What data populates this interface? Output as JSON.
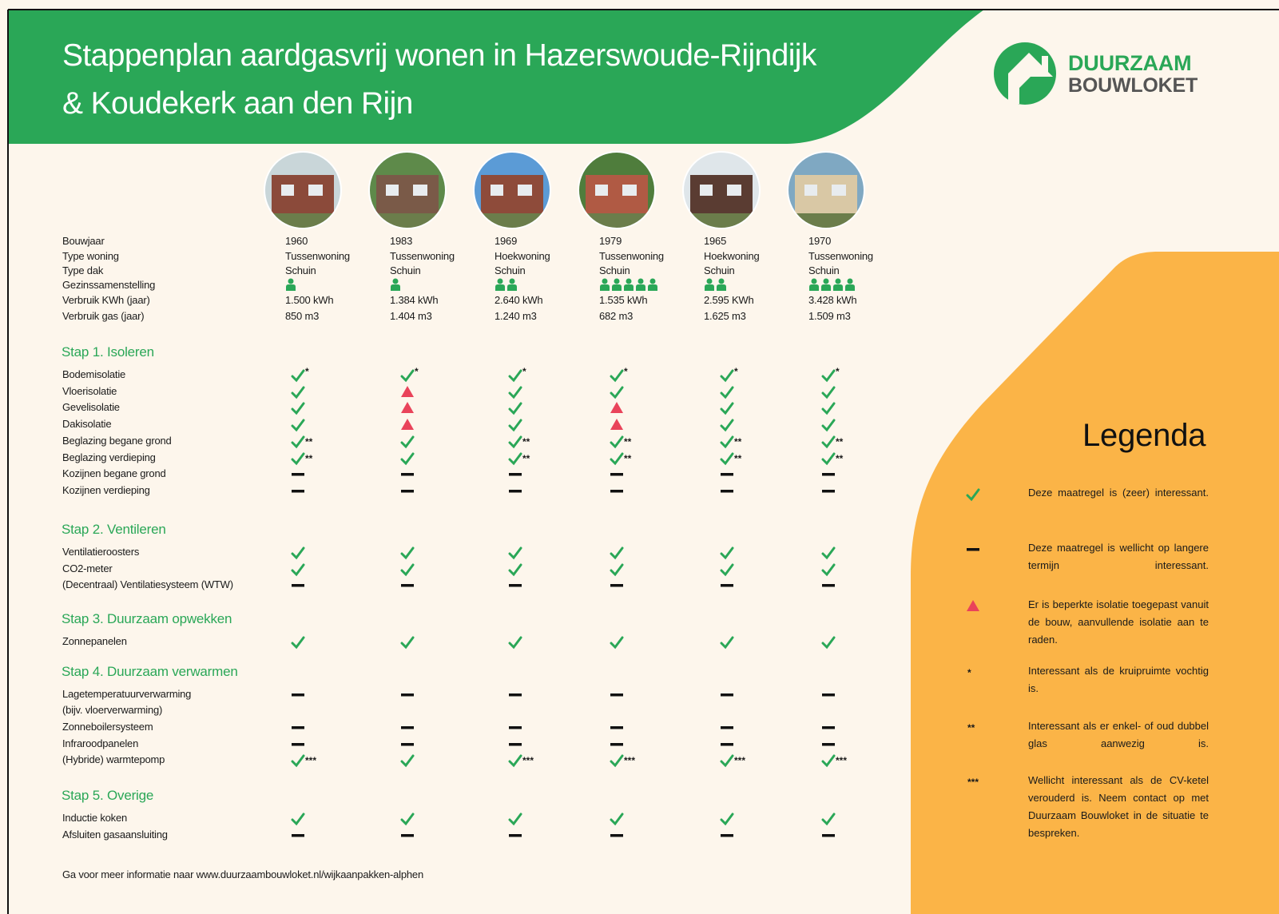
{
  "header": {
    "title_lines": [
      "Stappenplan aardgasvrij wonen in Hazerswoude-Rijndijk",
      "& Koudekerk aan den Rijn"
    ],
    "logo": {
      "line1": "DUURZAAM",
      "line2": "BOUWLOKET"
    }
  },
  "houses": {
    "labels": [
      "Bouwjaar",
      "Type woning",
      "Type dak",
      "Gezinssamenstelling",
      "Verbruik KWh (jaar)",
      "Verbruik gas (jaar)"
    ],
    "items": [
      {
        "year": "1960",
        "type": "Tussenwoning",
        "roof": "Schuin",
        "household": 1,
        "kwh": "1.500 kWh",
        "gas": "850 m3"
      },
      {
        "year": "1983",
        "type": "Tussenwoning",
        "roof": "Schuin",
        "household": 1,
        "kwh": "1.384 kWh",
        "gas": "1.404 m3"
      },
      {
        "year": "1969",
        "type": "Hoekwoning",
        "roof": "Schuin",
        "household": 2,
        "kwh": "2.640 kWh",
        "gas": "1.240 m3"
      },
      {
        "year": "1979",
        "type": "Tussenwoning",
        "roof": "Schuin",
        "household": 5,
        "kwh": "1.535 kWh",
        "gas": "682 m3"
      },
      {
        "year": "1965",
        "type": "Hoekwoning",
        "roof": "Schuin",
        "household": 2,
        "kwh": "2.595 KWh",
        "gas": "1.625 m3"
      },
      {
        "year": "1970",
        "type": "Tussenwoning",
        "roof": "Schuin",
        "household": 4,
        "kwh": "3.428 kWh",
        "gas": "1.509 m3"
      }
    ]
  },
  "steps": [
    {
      "title": "Stap 1. Isoleren",
      "rows": [
        {
          "label": "Bodemisolatie",
          "cells": [
            {
              "s": "check",
              "n": "*"
            },
            {
              "s": "check",
              "n": "*"
            },
            {
              "s": "check",
              "n": "*"
            },
            {
              "s": "check",
              "n": "*"
            },
            {
              "s": "check",
              "n": "*"
            },
            {
              "s": "check",
              "n": "*"
            }
          ]
        },
        {
          "label": "Vloerisolatie",
          "cells": [
            {
              "s": "check"
            },
            {
              "s": "triangle"
            },
            {
              "s": "check"
            },
            {
              "s": "check"
            },
            {
              "s": "check"
            },
            {
              "s": "check"
            }
          ]
        },
        {
          "label": "Gevelisolatie",
          "cells": [
            {
              "s": "check"
            },
            {
              "s": "triangle"
            },
            {
              "s": "check"
            },
            {
              "s": "triangle"
            },
            {
              "s": "check"
            },
            {
              "s": "check"
            }
          ]
        },
        {
          "label": "Dakisolatie",
          "cells": [
            {
              "s": "check"
            },
            {
              "s": "triangle"
            },
            {
              "s": "check"
            },
            {
              "s": "triangle"
            },
            {
              "s": "check"
            },
            {
              "s": "check"
            }
          ]
        },
        {
          "label": "Beglazing begane grond",
          "cells": [
            {
              "s": "check",
              "n": "**"
            },
            {
              "s": "check"
            },
            {
              "s": "check",
              "n": "**"
            },
            {
              "s": "check",
              "n": "**"
            },
            {
              "s": "check",
              "n": "**"
            },
            {
              "s": "check",
              "n": "**"
            }
          ]
        },
        {
          "label": "Beglazing verdieping",
          "cells": [
            {
              "s": "check",
              "n": "**"
            },
            {
              "s": "check"
            },
            {
              "s": "check",
              "n": "**"
            },
            {
              "s": "check",
              "n": "**"
            },
            {
              "s": "check",
              "n": "**"
            },
            {
              "s": "check",
              "n": "**"
            }
          ]
        },
        {
          "label": "Kozijnen begane grond",
          "cells": [
            {
              "s": "dash"
            },
            {
              "s": "dash"
            },
            {
              "s": "dash"
            },
            {
              "s": "dash"
            },
            {
              "s": "dash"
            },
            {
              "s": "dash"
            }
          ]
        },
        {
          "label": "Kozijnen verdieping",
          "cells": [
            {
              "s": "dash"
            },
            {
              "s": "dash"
            },
            {
              "s": "dash"
            },
            {
              "s": "dash"
            },
            {
              "s": "dash"
            },
            {
              "s": "dash"
            }
          ]
        }
      ]
    },
    {
      "title": "Stap 2. Ventileren",
      "rows": [
        {
          "label": "Ventilatieroosters",
          "cells": [
            {
              "s": "check"
            },
            {
              "s": "check"
            },
            {
              "s": "check"
            },
            {
              "s": "check"
            },
            {
              "s": "check"
            },
            {
              "s": "check"
            }
          ]
        },
        {
          "label": "CO2-meter",
          "cells": [
            {
              "s": "check"
            },
            {
              "s": "check"
            },
            {
              "s": "check"
            },
            {
              "s": "check"
            },
            {
              "s": "check"
            },
            {
              "s": "check"
            }
          ]
        },
        {
          "label": "(Decentraal) Ventilatiesysteem (WTW)",
          "cells": [
            {
              "s": "dash"
            },
            {
              "s": "dash"
            },
            {
              "s": "dash"
            },
            {
              "s": "dash"
            },
            {
              "s": "dash"
            },
            {
              "s": "dash"
            }
          ]
        }
      ]
    },
    {
      "title": "Stap 3. Duurzaam opwekken",
      "rows": [
        {
          "label": "Zonnepanelen",
          "cells": [
            {
              "s": "check"
            },
            {
              "s": "check"
            },
            {
              "s": "check"
            },
            {
              "s": "check"
            },
            {
              "s": "check"
            },
            {
              "s": "check"
            }
          ]
        }
      ]
    },
    {
      "title": "Stap 4. Duurzaam verwarmen",
      "rows": [
        {
          "label": "Lagetemperatuurverwarming",
          "sublabel": "(bijv. vloerverwarming)",
          "cells": [
            {
              "s": "dash"
            },
            {
              "s": "dash"
            },
            {
              "s": "dash"
            },
            {
              "s": "dash"
            },
            {
              "s": "dash"
            },
            {
              "s": "dash"
            }
          ]
        },
        {
          "label": "Zonneboilersysteem",
          "cells": [
            {
              "s": "dash"
            },
            {
              "s": "dash"
            },
            {
              "s": "dash"
            },
            {
              "s": "dash"
            },
            {
              "s": "dash"
            },
            {
              "s": "dash"
            }
          ]
        },
        {
          "label": "Infraroodpanelen",
          "cells": [
            {
              "s": "dash"
            },
            {
              "s": "dash"
            },
            {
              "s": "dash"
            },
            {
              "s": "dash"
            },
            {
              "s": "dash"
            },
            {
              "s": "dash"
            }
          ]
        },
        {
          "label": "(Hybride) warmtepomp",
          "cells": [
            {
              "s": "check",
              "n": "***"
            },
            {
              "s": "check"
            },
            {
              "s": "check",
              "n": "***"
            },
            {
              "s": "check",
              "n": "***"
            },
            {
              "s": "check",
              "n": "***"
            },
            {
              "s": "check",
              "n": "***"
            }
          ]
        }
      ]
    },
    {
      "title": "Stap 5. Overige",
      "rows": [
        {
          "label": "Inductie koken",
          "cells": [
            {
              "s": "check"
            },
            {
              "s": "check"
            },
            {
              "s": "check"
            },
            {
              "s": "check"
            },
            {
              "s": "check"
            },
            {
              "s": "check"
            }
          ]
        },
        {
          "label": "Afsluiten gasaansluiting",
          "cells": [
            {
              "s": "dash"
            },
            {
              "s": "dash"
            },
            {
              "s": "dash"
            },
            {
              "s": "dash"
            },
            {
              "s": "dash"
            },
            {
              "s": "dash"
            }
          ]
        }
      ]
    }
  ],
  "legend": {
    "title": "Legenda",
    "items": [
      {
        "s": "check",
        "text": "Deze maatregel is (zeer) interessant."
      },
      {
        "s": "dash",
        "text": "Deze maatregel is wellicht op langere termijn interessant."
      },
      {
        "s": "triangle",
        "text": "Er is beperkte isolatie toegepast vanuit de bouw, aanvullende isolatie aan te raden."
      },
      {
        "s": "note",
        "n": "*",
        "text": "Interessant als de kruipruimte vochtig is."
      },
      {
        "s": "note",
        "n": "**",
        "text": "Interessant als er enkel- of oud dubbel glas aanwezig is."
      },
      {
        "s": "note",
        "n": "***",
        "text": "Wellicht interessant als de CV-ketel verouderd is. Neem contact op met Duurzaam Bouwloket in de situatie te bespreken."
      }
    ]
  },
  "footer": {
    "text": "Ga voor meer informatie naar www.duurzaambouwloket.nl/wijkaanpakken-alphen"
  }
}
